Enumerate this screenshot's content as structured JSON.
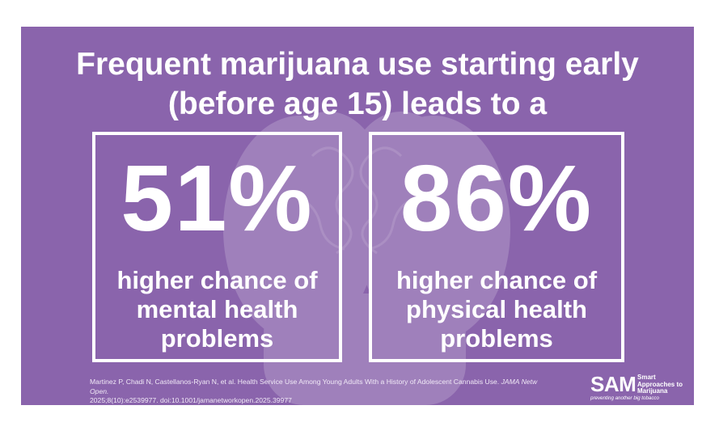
{
  "colors": {
    "background": "#8a64ac",
    "text": "#ffffff"
  },
  "title": {
    "line1": "Frequent marijuana use starting early",
    "line2": "(before age 15) leads to a"
  },
  "stats": [
    {
      "value": "51%",
      "desc_line1": "higher chance of",
      "desc_line2": "mental health",
      "desc_line3": "problems"
    },
    {
      "value": "86%",
      "desc_line1": "higher chance of",
      "desc_line2": "physical health",
      "desc_line3": "problems"
    }
  ],
  "citation": {
    "authors": "Martinez P, Chadi N, Castellanos-Ryan N, et al. Health Service Use Among Young Adults With a History of Adolescent Cannabis Use.",
    "journal": "JAMA Netw Open.",
    "line2": "2025;8(10):e2539977. doi:10.1001/jamanetworkopen.2025.39977"
  },
  "logo": {
    "mark": "SAM",
    "word1": "Smart",
    "word2": "Approaches to",
    "word3": "Marijuana",
    "tagline": "preventing another big tobacco"
  },
  "icons": {
    "background": "hands-holding-brain-icon"
  }
}
